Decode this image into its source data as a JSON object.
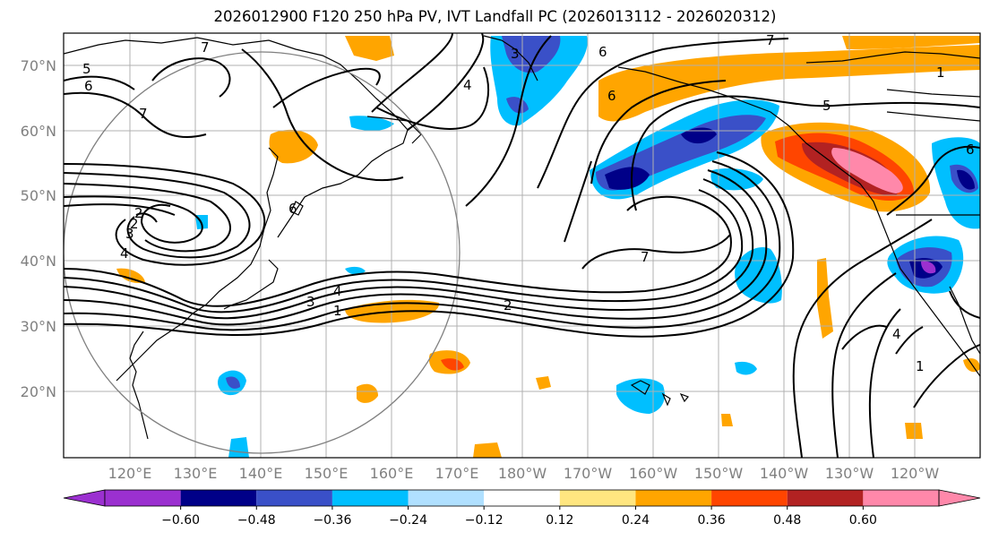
{
  "title": "2026012900 F120 250 hPa PV, IVT Landfall PC (2026013112 - 2026020312)",
  "lat_labels": [
    "70°N",
    "60°N",
    "50°N",
    "40°N",
    "30°N",
    "20°N"
  ],
  "lon_labels": [
    "120°E",
    "130°E",
    "140°E",
    "150°E",
    "160°E",
    "170°E",
    "180°W",
    "170°W",
    "160°W",
    "150°W",
    "140°W",
    "130°W",
    "120°W"
  ],
  "contour_labels": [
    "7",
    "5",
    "6",
    "7",
    "2",
    "3",
    "4",
    "2",
    "6",
    "3",
    "4",
    "1",
    "2",
    "7",
    "6",
    "6",
    "5",
    "7",
    "1",
    "6",
    "4",
    "3",
    "4",
    "1"
  ],
  "colorbar": {
    "ticks": [
      "−0.60",
      "−0.48",
      "−0.36",
      "−0.24",
      "−0.12",
      "0.12",
      "0.24",
      "0.36",
      "0.48",
      "0.60"
    ],
    "colors": [
      "#9b30d0",
      "#000088",
      "#3a50c8",
      "#00bfff",
      "#b0e0ff",
      "#ffffff",
      "#ffe680",
      "#ffa500",
      "#ff4500",
      "#b22222",
      "#ff88aa"
    ]
  }
}
